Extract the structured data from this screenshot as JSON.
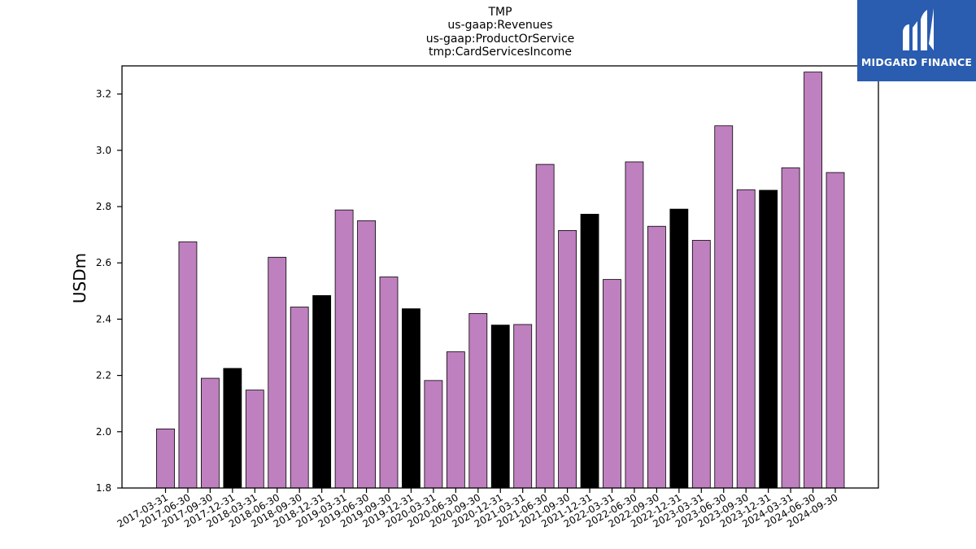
{
  "title_lines": [
    "TMP",
    "us-gaap:Revenues",
    "us-gaap:ProductOrService",
    "tmp:CardServicesIncome"
  ],
  "logo": {
    "text": "MIDGARD FINANCE"
  },
  "colors": {
    "bar_default": "#bf80bf",
    "bar_q4": "#000000",
    "logo_bg": "#2a5caf"
  },
  "chart_data": {
    "type": "bar",
    "title": "TMP\nus-gaap:Revenues\nus-gaap:ProductOrService\ntmp:CardServicesIncome",
    "xlabel": "",
    "ylabel": "USDm",
    "ylim": [
      1.8,
      3.3
    ],
    "yticks": [
      "1.8",
      "2.0",
      "2.2",
      "2.4",
      "2.6",
      "2.8",
      "3.0",
      "3.2"
    ],
    "grid": false,
    "categories": [
      "2017-03-31",
      "2017-06-30",
      "2017-09-30",
      "2017-12-31",
      "2018-03-31",
      "2018-06-30",
      "2018-09-30",
      "2018-12-31",
      "2019-03-31",
      "2019-06-30",
      "2019-09-30",
      "2019-12-31",
      "2020-03-31",
      "2020-06-30",
      "2020-09-30",
      "2020-12-31",
      "2021-03-31",
      "2021-06-30",
      "2021-09-30",
      "2021-12-31",
      "2022-03-31",
      "2022-06-30",
      "2022-09-30",
      "2022-12-31",
      "2023-03-31",
      "2023-06-30",
      "2023-09-30",
      "2023-12-31",
      "2024-03-31",
      "2024-06-30",
      "2024-09-30"
    ],
    "values": [
      2.01,
      2.675,
      2.19,
      2.225,
      2.148,
      2.62,
      2.443,
      2.484,
      2.788,
      2.75,
      2.55,
      2.437,
      2.182,
      2.284,
      2.42,
      2.379,
      2.381,
      2.95,
      2.715,
      2.773,
      2.541,
      2.959,
      2.73,
      2.791,
      2.68,
      3.087,
      2.86,
      2.858,
      2.938,
      3.278,
      2.921
    ]
  }
}
